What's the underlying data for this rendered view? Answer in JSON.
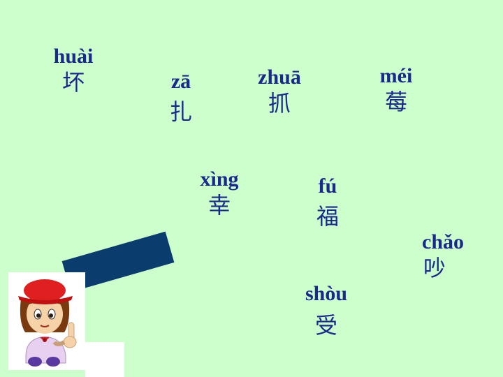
{
  "words": [
    {
      "pinyin": "huài",
      "hanzi": "坏"
    },
    {
      "pinyin": "zā",
      "hanzi": "扎"
    },
    {
      "pinyin": "zhuā",
      "hanzi": "抓"
    },
    {
      "pinyin": "méi",
      "hanzi": "莓"
    },
    {
      "pinyin": "xìng",
      "hanzi": "幸"
    },
    {
      "pinyin": "fú",
      "hanzi": "福"
    },
    {
      "pinyin": "chǎo",
      "hanzi": "吵"
    },
    {
      "pinyin": "shòu",
      "hanzi": "受"
    }
  ],
  "colors": {
    "background": "#ccffcc",
    "text": "#1a2a8a",
    "board": "#0b3c6e"
  },
  "icons": {
    "character": "cartoon-girl-pointing-icon"
  }
}
